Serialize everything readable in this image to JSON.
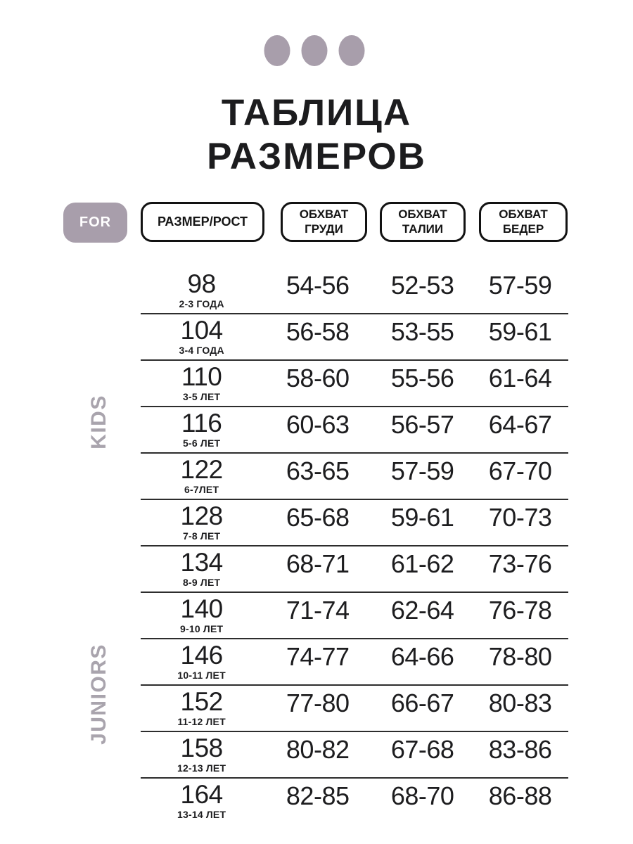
{
  "page": {
    "title_line1": "ТАБЛИЦА",
    "title_line2": "РАЗМЕРОВ"
  },
  "colors": {
    "accent_mauve": "#a89eab",
    "group_label_gray": "#a9a4ad",
    "text_dark": "#1c1c1e",
    "divider": "#2d2d2d",
    "background": "#ffffff"
  },
  "icons": {
    "decorative_dots": "three-dots"
  },
  "header": {
    "for_label": "FOR",
    "columns": [
      "РАЗМЕР/РОСТ",
      "ОБХВАТ ГРУДИ",
      "ОБХВАТ ТАЛИИ",
      "ОБХВАТ БЕДЕР"
    ]
  },
  "groups": [
    {
      "label": "KIDS"
    },
    {
      "label": "JUNIORS"
    }
  ],
  "chart_data": {
    "type": "table",
    "title": "ТАБЛИЦА РАЗМЕРОВ",
    "columns": [
      "РАЗМЕР/РОСТ",
      "ОБХВАТ ГРУДИ",
      "ОБХВАТ ТАЛИИ",
      "ОБХВАТ БЕДЕР"
    ],
    "row_group_labels": [
      "KIDS",
      "JUNIORS"
    ],
    "rows": [
      {
        "size": "98",
        "age": "2-3 ГОДА",
        "chest": "54-56",
        "waist": "52-53",
        "hips": "57-59"
      },
      {
        "size": "104",
        "age": "3-4 ГОДА",
        "chest": "56-58",
        "waist": "53-55",
        "hips": "59-61"
      },
      {
        "size": "110",
        "age": "3-5 ЛЕТ",
        "chest": "58-60",
        "waist": "55-56",
        "hips": "61-64"
      },
      {
        "size": "116",
        "age": "5-6 ЛЕТ",
        "chest": "60-63",
        "waist": "56-57",
        "hips": "64-67"
      },
      {
        "size": "122",
        "age": "6-7ЛЕТ",
        "chest": "63-65",
        "waist": "57-59",
        "hips": "67-70"
      },
      {
        "size": "128",
        "age": "7-8 ЛЕТ",
        "chest": "65-68",
        "waist": "59-61",
        "hips": "70-73"
      },
      {
        "size": "134",
        "age": "8-9 ЛЕТ",
        "chest": "68-71",
        "waist": "61-62",
        "hips": "73-76"
      },
      {
        "size": "140",
        "age": "9-10 ЛЕТ",
        "chest": "71-74",
        "waist": "62-64",
        "hips": "76-78"
      },
      {
        "size": "146",
        "age": "10-11 ЛЕТ",
        "chest": "74-77",
        "waist": "64-66",
        "hips": "78-80"
      },
      {
        "size": "152",
        "age": "11-12 ЛЕТ",
        "chest": "77-80",
        "waist": "66-67",
        "hips": "80-83"
      },
      {
        "size": "158",
        "age": "12-13 ЛЕТ",
        "chest": "80-82",
        "waist": "67-68",
        "hips": "83-86"
      },
      {
        "size": "164",
        "age": "13-14 ЛЕТ",
        "chest": "82-85",
        "waist": "68-70",
        "hips": "86-88"
      }
    ]
  }
}
